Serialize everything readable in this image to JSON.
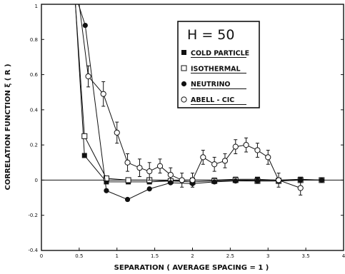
{
  "chart_data": {
    "type": "line",
    "xlabel": "SEPARATION ( AVERAGE SPACING = 1 )",
    "ylabel": "CORRELATION FUNCTION ξ ( R )",
    "xlim": [
      0,
      4
    ],
    "ylim": [
      -0.4,
      1
    ],
    "x_ticks": [
      {
        "value": 0,
        "label": "0"
      },
      {
        "value": 0.5,
        "label": "0.5"
      },
      {
        "value": 1,
        "label": "1"
      },
      {
        "value": 1.5,
        "label": "1.5"
      },
      {
        "value": 2,
        "label": "2"
      },
      {
        "value": 2.5,
        "label": "2.5"
      },
      {
        "value": 3,
        "label": "3"
      },
      {
        "value": 3.5,
        "label": "3.5"
      },
      {
        "value": 4,
        "label": "4"
      }
    ],
    "y_ticks": [
      {
        "value": -0.4,
        "label": "-0.4"
      },
      {
        "value": -0.2,
        "label": "-0.2"
      },
      {
        "value": 0,
        "label": "0"
      },
      {
        "value": 0.2,
        "label": "0.2"
      },
      {
        "value": 0.4,
        "label": "0.4"
      },
      {
        "value": 0.6,
        "label": "0.6"
      },
      {
        "value": 0.8,
        "label": "0.8"
      },
      {
        "value": 1,
        "label": "1"
      }
    ],
    "zero_line": true,
    "grid": false,
    "legend": {
      "title": "H = 50",
      "placement": "top-right",
      "entries": [
        "COLD PARTICLE",
        "ISOTHERMAL",
        "NEUTRINO",
        "ABELL - CIC"
      ]
    },
    "series": [
      {
        "name": "COLD PARTICLE",
        "marker": "filled-square",
        "points": [
          [
            0.45,
            1.3
          ],
          [
            0.57,
            0.14
          ],
          [
            0.86,
            -0.01
          ],
          [
            1.15,
            -0.01
          ],
          [
            1.43,
            -0.01
          ],
          [
            1.71,
            -0.005
          ],
          [
            2.0,
            0.0
          ],
          [
            2.29,
            0.0
          ],
          [
            2.57,
            0.005
          ],
          [
            2.86,
            0.005
          ],
          [
            3.14,
            0.0
          ],
          [
            3.43,
            0.005
          ],
          [
            3.71,
            0.0
          ]
        ]
      },
      {
        "name": "ISOTHERMAL",
        "marker": "open-square",
        "points": [
          [
            0.45,
            1.3
          ],
          [
            0.57,
            0.25
          ],
          [
            0.86,
            0.01
          ],
          [
            1.15,
            0.0
          ],
          [
            1.43,
            0.0
          ],
          [
            1.71,
            -0.005
          ],
          [
            2.0,
            -0.01
          ],
          [
            2.29,
            -0.005
          ],
          [
            2.57,
            0.0
          ],
          [
            2.86,
            -0.005
          ],
          [
            3.14,
            -0.005
          ],
          [
            3.43,
            0.0
          ],
          [
            3.71,
            0.0
          ]
        ]
      },
      {
        "name": "NEUTRINO",
        "marker": "filled-circle",
        "points": [
          [
            0.49,
            1.3
          ],
          [
            0.58,
            0.88
          ],
          [
            0.86,
            -0.06
          ],
          [
            1.14,
            -0.11
          ],
          [
            1.43,
            -0.05
          ],
          [
            1.71,
            -0.015
          ],
          [
            2.0,
            -0.02
          ],
          [
            2.29,
            -0.01
          ],
          [
            2.57,
            -0.005
          ],
          [
            2.86,
            -0.005
          ],
          [
            3.14,
            -0.005
          ],
          [
            3.43,
            0.0
          ],
          [
            3.71,
            0.0
          ]
        ]
      },
      {
        "name": "ABELL - CIC",
        "marker": "open-circle",
        "error_bars": true,
        "points": [
          [
            0.5,
            1.3
          ],
          [
            0.62,
            0.59
          ],
          [
            0.82,
            0.49
          ],
          [
            1.0,
            0.27
          ],
          [
            1.14,
            0.1
          ],
          [
            1.3,
            0.07
          ],
          [
            1.43,
            0.05
          ],
          [
            1.57,
            0.08
          ],
          [
            1.71,
            0.03
          ],
          [
            1.86,
            0.0
          ],
          [
            2.0,
            0.0
          ],
          [
            2.14,
            0.13
          ],
          [
            2.29,
            0.09
          ],
          [
            2.43,
            0.11
          ],
          [
            2.57,
            0.19
          ],
          [
            2.71,
            0.2
          ],
          [
            2.86,
            0.17
          ],
          [
            3.0,
            0.13
          ],
          [
            3.14,
            0.0
          ],
          [
            3.43,
            -0.045
          ]
        ],
        "errors": [
          0,
          0.06,
          0.07,
          0.06,
          0.05,
          0.05,
          0.05,
          0.04,
          0.04,
          0.04,
          0.04,
          0.04,
          0.04,
          0.04,
          0.04,
          0.04,
          0.04,
          0.04,
          0.04,
          0.04
        ]
      }
    ]
  }
}
